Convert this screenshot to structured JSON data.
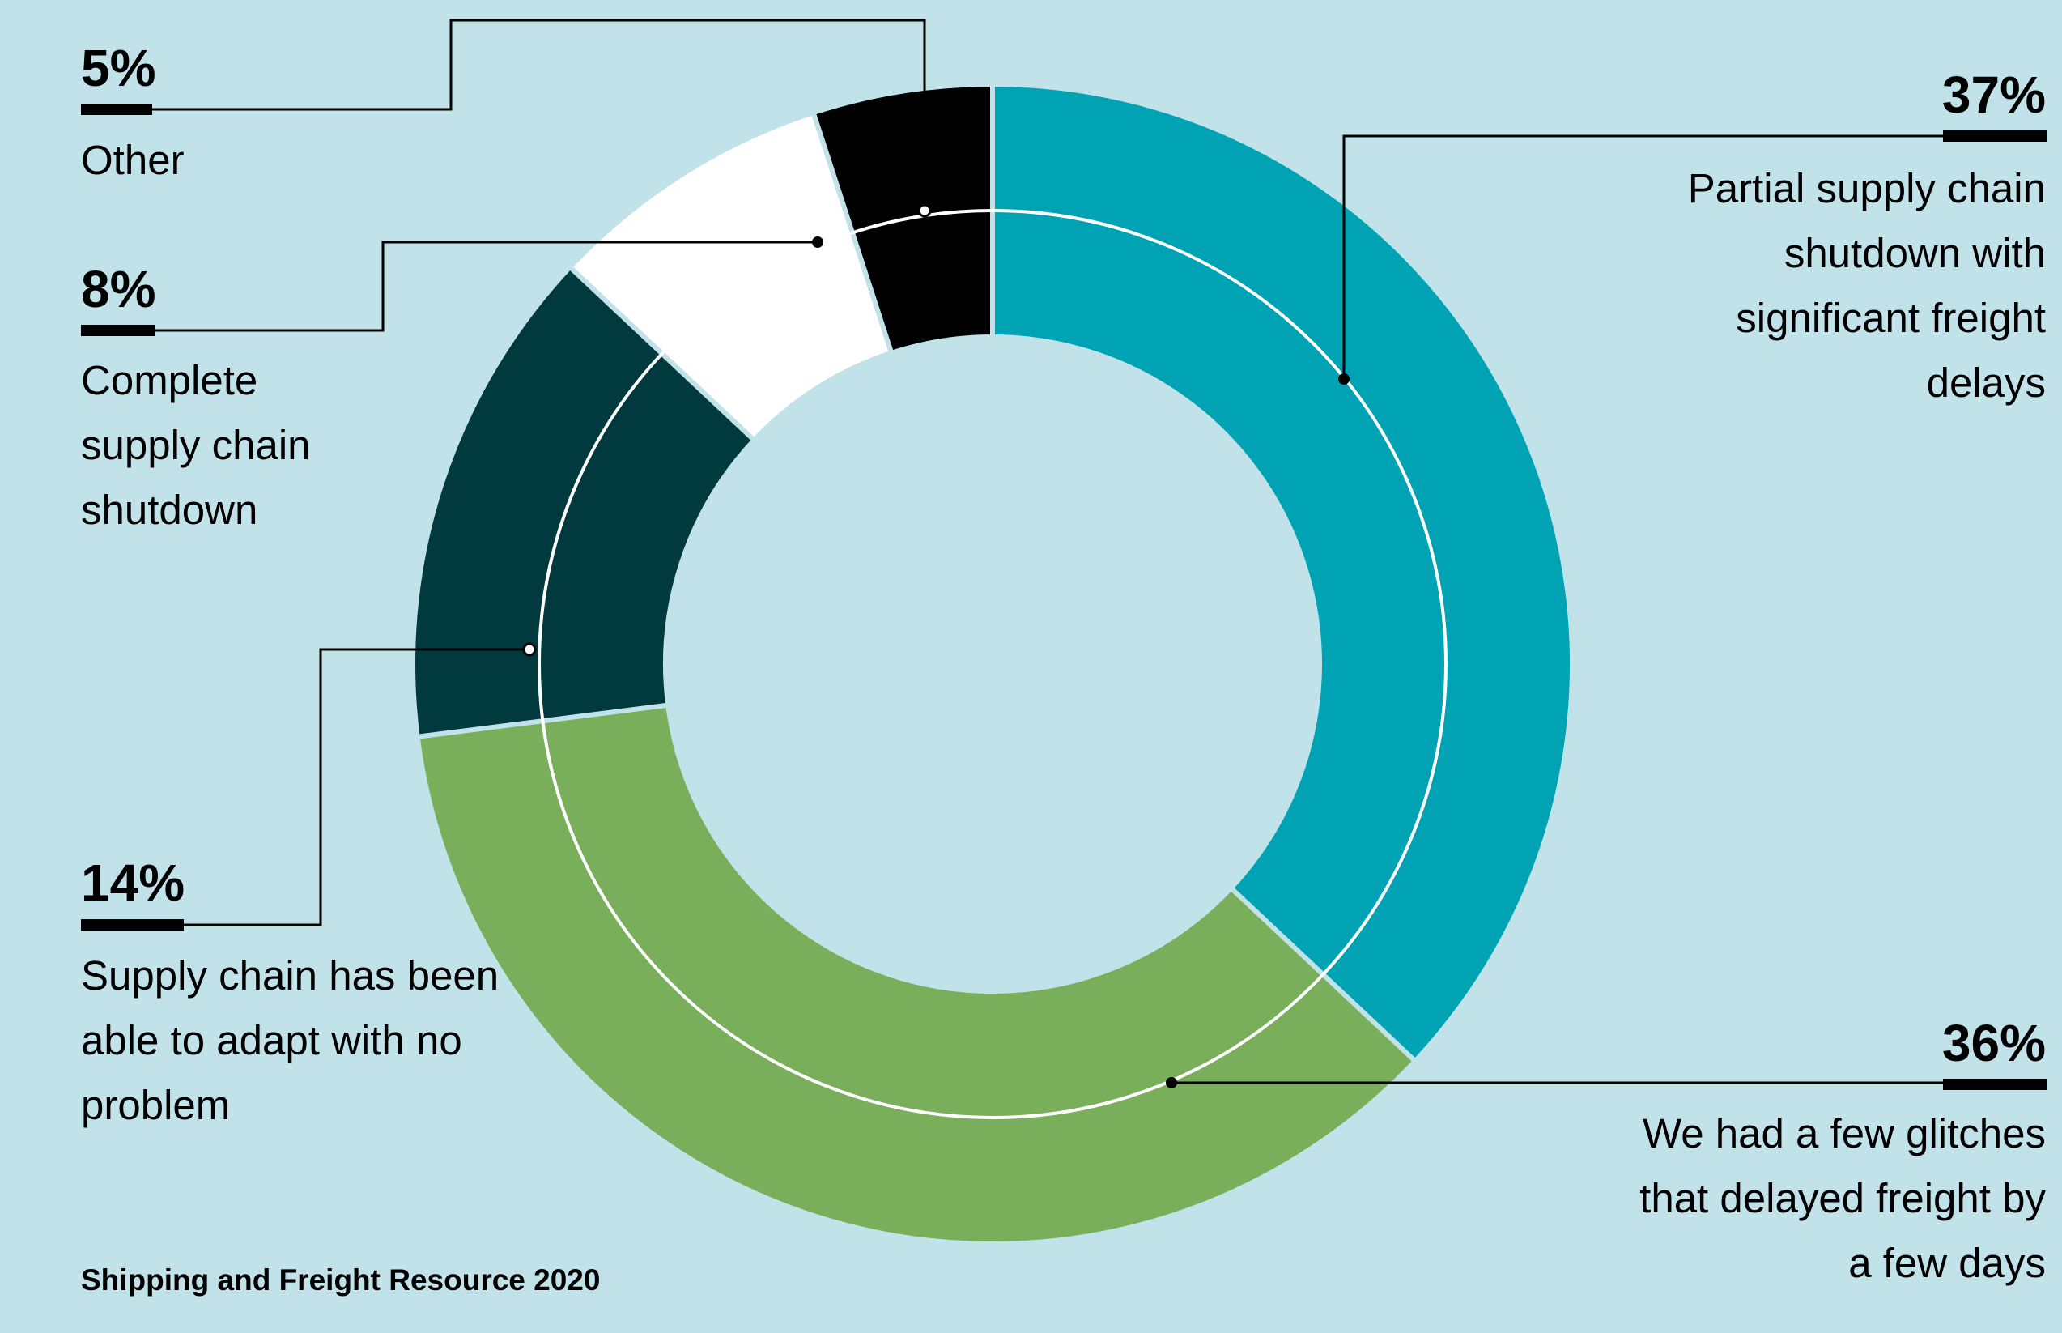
{
  "chart_data": {
    "type": "pie",
    "title": "",
    "slices": [
      {
        "label": "Partial supply chain shutdown with significant freight delays",
        "value": 37,
        "display": "37%",
        "color": "#00a3b4"
      },
      {
        "label": "We had a few glitches that delayed freight by a few days",
        "value": 36,
        "display": "36%",
        "color": "#79af5a"
      },
      {
        "label": "Supply chain has been able to adapt with no problem",
        "value": 14,
        "display": "14%",
        "color": "#003a3e"
      },
      {
        "label": "Complete supply chain shutdown",
        "value": 8,
        "display": "8%",
        "color": "#ffffff"
      },
      {
        "label": "Other",
        "value": 5,
        "display": "5%",
        "color": "#000000"
      }
    ]
  },
  "labels": {
    "other": {
      "pct": "5%",
      "text": "Other"
    },
    "complete": {
      "pct": "8%",
      "line1": "Complete",
      "line2": "supply chain",
      "line3": "shutdown"
    },
    "adapt": {
      "pct": "14%",
      "line1": "Supply chain has been",
      "line2": "able to adapt with no",
      "line3": "problem"
    },
    "partial": {
      "pct": "37%",
      "line1": "Partial supply chain",
      "line2": "shutdown with",
      "line3": "significant freight",
      "line4": "delays"
    },
    "glitches": {
      "pct": "36%",
      "line1": "We had a few glitches",
      "line2": "that delayed freight by",
      "line3": "a few days"
    }
  },
  "source": "Shipping and Freight Resource 2020",
  "colors": {
    "background": "#c1e2e8",
    "leader": "#000000",
    "inner_ring": "#ffffff"
  }
}
